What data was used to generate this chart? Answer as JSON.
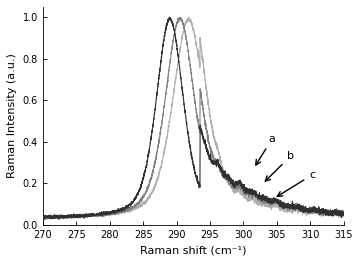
{
  "x_min": 270,
  "x_max": 315,
  "y_min": 0.0,
  "y_max": 1.05,
  "xlabel": "Raman shift (cm⁻¹)",
  "ylabel": "Raman Intensity (a.u.)",
  "xticks": [
    270,
    275,
    280,
    285,
    290,
    295,
    300,
    305,
    310,
    315
  ],
  "yticks": [
    0.0,
    0.2,
    0.4,
    0.6,
    0.8,
    1.0
  ],
  "color_a": "#303030",
  "color_b": "#808080",
  "color_c": "#b0b0b0",
  "peak_a": 289.0,
  "peak_b": 290.5,
  "peak_c": 291.8,
  "fwhm_a": 4.8,
  "fwhm_b": 5.2,
  "fwhm_c": 5.6,
  "label_a": "a",
  "label_b": "b",
  "label_c": "c"
}
